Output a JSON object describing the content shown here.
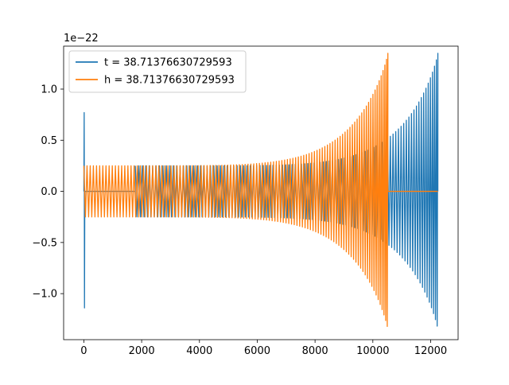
{
  "chart_data": {
    "type": "line",
    "title": "",
    "xlabel": "",
    "ylabel": "",
    "y_offset_text": "1e−22",
    "xlim": [
      -700,
      12950
    ],
    "ylim": [
      -1.45,
      1.42
    ],
    "x_ticks": [
      {
        "value": 0,
        "label": "0"
      },
      {
        "value": 2000,
        "label": "2000"
      },
      {
        "value": 4000,
        "label": "4000"
      },
      {
        "value": 6000,
        "label": "6000"
      },
      {
        "value": 8000,
        "label": "8000"
      },
      {
        "value": 10000,
        "label": "10000"
      },
      {
        "value": 12000,
        "label": "12000"
      }
    ],
    "y_ticks": [
      {
        "value": -1.0,
        "label": "−1.0"
      },
      {
        "value": -0.5,
        "label": "−0.5"
      },
      {
        "value": 0.0,
        "label": "0.0"
      },
      {
        "value": 0.5,
        "label": "0.5"
      },
      {
        "value": 1.0,
        "label": "1.0"
      }
    ],
    "grid": false,
    "legend_position": "upper-left",
    "series": [
      {
        "name": "t = 38.71376630729593",
        "color": "#1f77b4",
        "segments": [
          {
            "kind": "spike",
            "x": 0,
            "ymin": -1.14,
            "ymax": 0.77
          },
          {
            "kind": "flat",
            "x_start": 0,
            "x_end": 1780,
            "y": 0.0
          },
          {
            "kind": "chirp",
            "x_start": 1780,
            "x_end": 12250,
            "amp_start": 0.25,
            "amp_end": 1.35,
            "cycles": 100
          }
        ]
      },
      {
        "name": "h = 38.71376630729593",
        "color": "#ff7f0e",
        "segments": [
          {
            "kind": "chirp",
            "x_start": 0,
            "x_end": 10520,
            "amp_start": 0.25,
            "amp_end": 1.35,
            "cycles": 110
          },
          {
            "kind": "flat",
            "x_start": 10520,
            "x_end": 12250,
            "y": 0.0
          }
        ]
      }
    ]
  }
}
